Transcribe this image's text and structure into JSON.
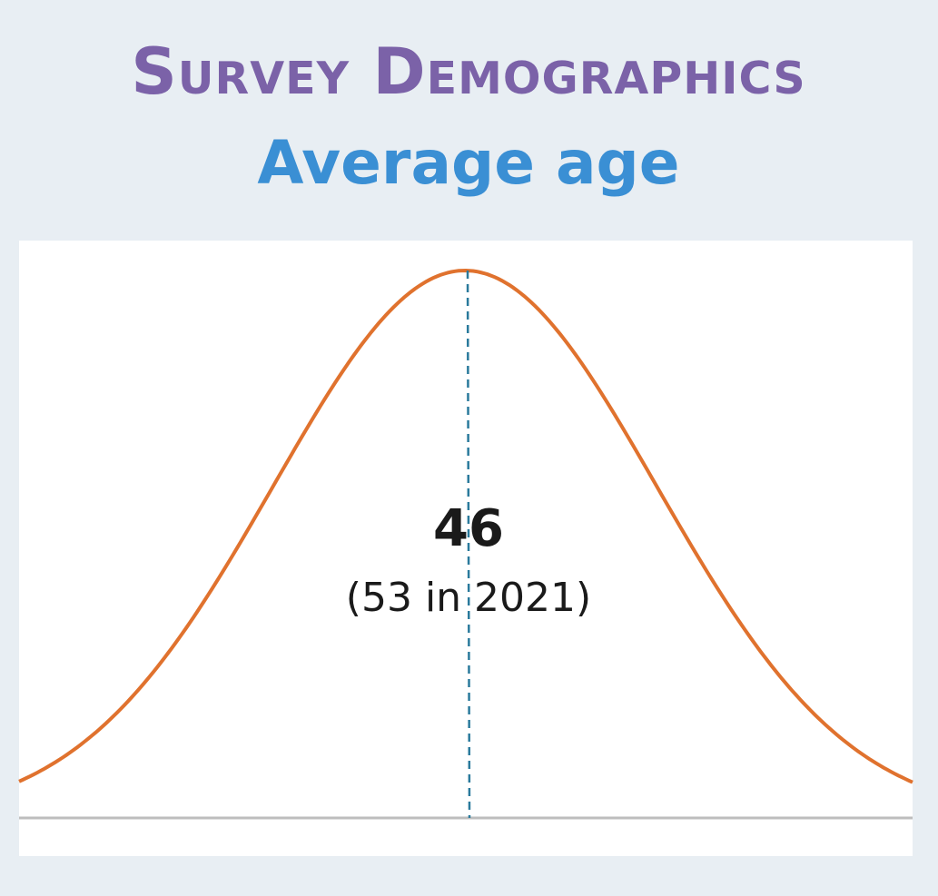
{
  "header": {
    "title": "Survey Demographics",
    "subtitle": "Average age"
  },
  "stat": {
    "value": 46,
    "note": "(53 in 2021)"
  }
}
